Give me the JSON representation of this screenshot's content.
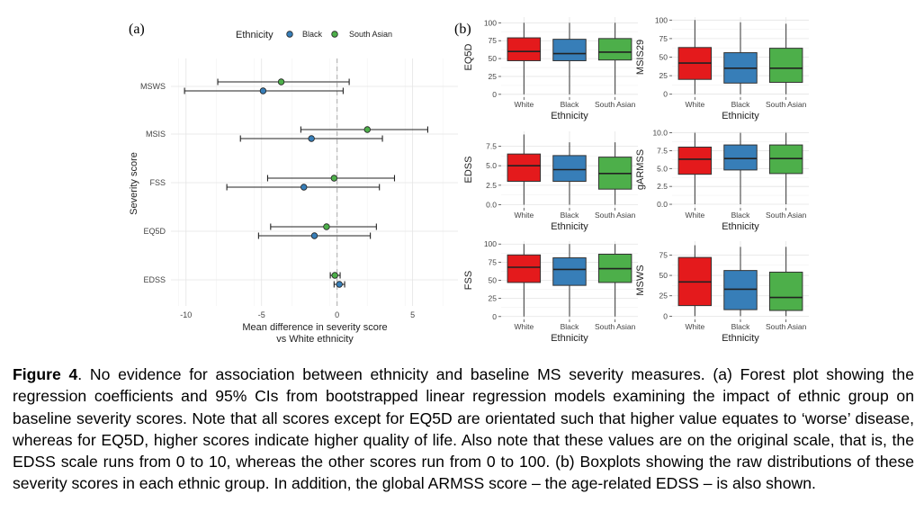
{
  "panel_labels": {
    "a": "(a)",
    "b": "(b)"
  },
  "colors": {
    "White": "#e41a1c",
    "Black": "#377eb8",
    "South Asian": "#4daf4a"
  },
  "chart_data": [
    {
      "type": "forest",
      "title": "",
      "legend": {
        "title": "Ethnicity",
        "entries": [
          "Black",
          "South Asian"
        ],
        "position": "top"
      },
      "xlabel_line1": "Mean difference in severity score",
      "xlabel_line2": "vs White ethnicity",
      "ylabel": "Severity score",
      "xlim": [
        -11,
        8
      ],
      "xticks": [
        -10,
        -5,
        0,
        5
      ],
      "xtick_labels": [
        "-10",
        "-5",
        "0",
        "5"
      ],
      "reference_line": 0,
      "categories": [
        "MSWS",
        "MSIS",
        "FSS",
        "EQ5D",
        "EDSS"
      ],
      "series": [
        {
          "name": "Black",
          "estimates": [
            -4.9,
            -1.7,
            -2.2,
            -1.5,
            0.15
          ],
          "ci_low": [
            -10.1,
            -6.4,
            -7.3,
            -5.2,
            -0.2
          ],
          "ci_high": [
            0.4,
            3.0,
            2.8,
            2.2,
            0.5
          ]
        },
        {
          "name": "South Asian",
          "estimates": [
            -3.7,
            2.0,
            -0.2,
            -0.7,
            -0.15
          ],
          "ci_low": [
            -7.9,
            -2.4,
            -4.6,
            -4.4,
            -0.45
          ],
          "ci_high": [
            0.8,
            6.0,
            3.8,
            2.6,
            0.2
          ]
        }
      ]
    },
    {
      "type": "boxplot",
      "ylabel": "EQ5D",
      "xlabel": "Ethnicity",
      "categories": [
        "White",
        "Black",
        "South Asian"
      ],
      "ylim": [
        -4,
        108
      ],
      "yticks": [
        0,
        25,
        50,
        75,
        100
      ],
      "ytick_labels": [
        "0",
        "25",
        "50",
        "75",
        "100"
      ],
      "boxes": [
        {
          "min": 0,
          "q1": 47,
          "median": 60,
          "q3": 79,
          "max": 100
        },
        {
          "min": 0,
          "q1": 47,
          "median": 57,
          "q3": 77,
          "max": 100
        },
        {
          "min": 0,
          "q1": 48,
          "median": 59,
          "q3": 78,
          "max": 100
        }
      ]
    },
    {
      "type": "boxplot",
      "ylabel": "MSIS29",
      "xlabel": "Ethnicity",
      "categories": [
        "White",
        "Black",
        "South Asian"
      ],
      "ylim": [
        -4,
        104
      ],
      "yticks": [
        0,
        25,
        50,
        75,
        100
      ],
      "ytick_labels": [
        "0",
        "25",
        "50",
        "75",
        "100"
      ],
      "boxes": [
        {
          "min": 0,
          "q1": 20,
          "median": 42,
          "q3": 63,
          "max": 100
        },
        {
          "min": 0,
          "q1": 15,
          "median": 35,
          "q3": 56,
          "max": 97
        },
        {
          "min": 0,
          "q1": 16,
          "median": 35,
          "q3": 62,
          "max": 95
        }
      ]
    },
    {
      "type": "boxplot",
      "ylabel": "EDSS",
      "xlabel": "Ethnicity",
      "categories": [
        "White",
        "Black",
        "South Asian"
      ],
      "ylim": [
        -0.4,
        9.4
      ],
      "yticks": [
        0,
        2.5,
        5,
        7.5
      ],
      "ytick_labels": [
        "0.0",
        "2.5",
        "5.0",
        "7.5"
      ],
      "boxes": [
        {
          "min": 0,
          "q1": 3.0,
          "median": 5.0,
          "q3": 6.5,
          "max": 9.0
        },
        {
          "min": 0,
          "q1": 3.0,
          "median": 4.5,
          "q3": 6.3,
          "max": 8.0
        },
        {
          "min": 0,
          "q1": 2.0,
          "median": 4.0,
          "q3": 6.1,
          "max": 8.0
        }
      ]
    },
    {
      "type": "boxplot",
      "ylabel": "gARMSS",
      "xlabel": "Ethnicity",
      "categories": [
        "White",
        "Black",
        "South Asian"
      ],
      "ylim": [
        -0.5,
        10.2
      ],
      "yticks": [
        0,
        2.5,
        5,
        7.5,
        10
      ],
      "ytick_labels": [
        "0.0",
        "2.5",
        "5.0",
        "7.5",
        "10.0"
      ],
      "boxes": [
        {
          "min": 0,
          "q1": 4.2,
          "median": 6.3,
          "q3": 8.0,
          "max": 10.0
        },
        {
          "min": 0,
          "q1": 4.8,
          "median": 6.4,
          "q3": 8.3,
          "max": 10.0
        },
        {
          "min": 0,
          "q1": 4.3,
          "median": 6.4,
          "q3": 8.3,
          "max": 10.0
        }
      ]
    },
    {
      "type": "boxplot",
      "ylabel": "FSS",
      "xlabel": "Ethnicity",
      "categories": [
        "White",
        "Black",
        "South Asian"
      ],
      "ylim": [
        -4,
        104
      ],
      "yticks": [
        0,
        25,
        50,
        75,
        100
      ],
      "ytick_labels": [
        "0",
        "25",
        "50",
        "75",
        "100"
      ],
      "boxes": [
        {
          "min": 0,
          "q1": 47,
          "median": 68,
          "q3": 85,
          "max": 100
        },
        {
          "min": 0,
          "q1": 43,
          "median": 65,
          "q3": 81,
          "max": 100
        },
        {
          "min": 0,
          "q1": 47,
          "median": 66,
          "q3": 86,
          "max": 100
        }
      ]
    },
    {
      "type": "boxplot",
      "ylabel": "MSWS",
      "xlabel": "Ethnicity",
      "categories": [
        "White",
        "Black",
        "South Asian"
      ],
      "ylim": [
        -4,
        92
      ],
      "yticks": [
        0,
        25,
        50,
        75
      ],
      "ytick_labels": [
        "0",
        "25",
        "50",
        "75"
      ],
      "boxes": [
        {
          "min": 0,
          "q1": 13,
          "median": 42,
          "q3": 72,
          "max": 87
        },
        {
          "min": 0,
          "q1": 8,
          "median": 33,
          "q3": 56,
          "max": 85
        },
        {
          "min": 0,
          "q1": 7,
          "median": 23,
          "q3": 54,
          "max": 85
        }
      ]
    }
  ],
  "caption": {
    "label": "Figure 4",
    "text": ". No evidence for association between ethnicity and baseline MS severity measures. (a) Forest plot showing the regression coefficients and 95% CIs from bootstrapped linear regression models examining the impact of ethnic group on baseline severity scores. Note that all scores except for EQ5D are orientated such that higher value equates to ‘worse’ disease, whereas for EQ5D, higher scores indicate higher quality of life. Also note that these values are on the original scale, that is, the EDSS scale runs from 0 to 10, whereas the other scores run from 0 to 100. (b) Boxplots showing the raw distributions of these severity scores in each ethnic group. In addition, the global ARMSS score – the age-related EDSS – is also shown."
  }
}
